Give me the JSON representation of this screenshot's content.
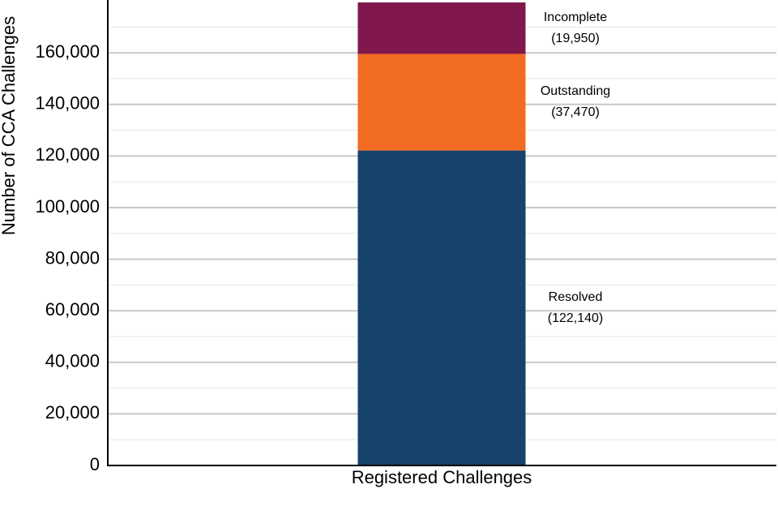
{
  "chart_data": {
    "type": "stacked_bar",
    "y_label": "Number of CCA Challenges",
    "categories": [
      "Registered Challenges"
    ],
    "series": [
      {
        "name": "Resolved",
        "color": "#16426b",
        "values": [
          122140
        ],
        "value_labels": [
          "(122,140)"
        ]
      },
      {
        "name": "Outstanding",
        "color": "#f26b22",
        "values": [
          37470
        ],
        "value_labels": [
          "(37,470)"
        ]
      },
      {
        "name": "Incomplete",
        "color": "#80174d",
        "values": [
          19950
        ],
        "value_labels": [
          "(19,950)"
        ]
      }
    ],
    "ylim": [
      0,
      179560
    ],
    "yticks": [
      0,
      {
        "value": 20000,
        "label": "20,000"
      },
      {
        "value": 40000,
        "label": "40,000"
      },
      {
        "value": 60000,
        "label": "60,000"
      },
      {
        "value": 80000,
        "label": "80,000"
      },
      {
        "value": 100000,
        "label": "100,000"
      },
      {
        "value": 120000,
        "label": "120,000"
      },
      {
        "value": 140000,
        "label": "140,000"
      },
      {
        "value": 160000,
        "label": "160,000"
      }
    ],
    "minor_yticks": [
      10000,
      30000,
      50000,
      70000,
      90000,
      110000,
      130000,
      150000,
      170000
    ],
    "grid": true
  }
}
